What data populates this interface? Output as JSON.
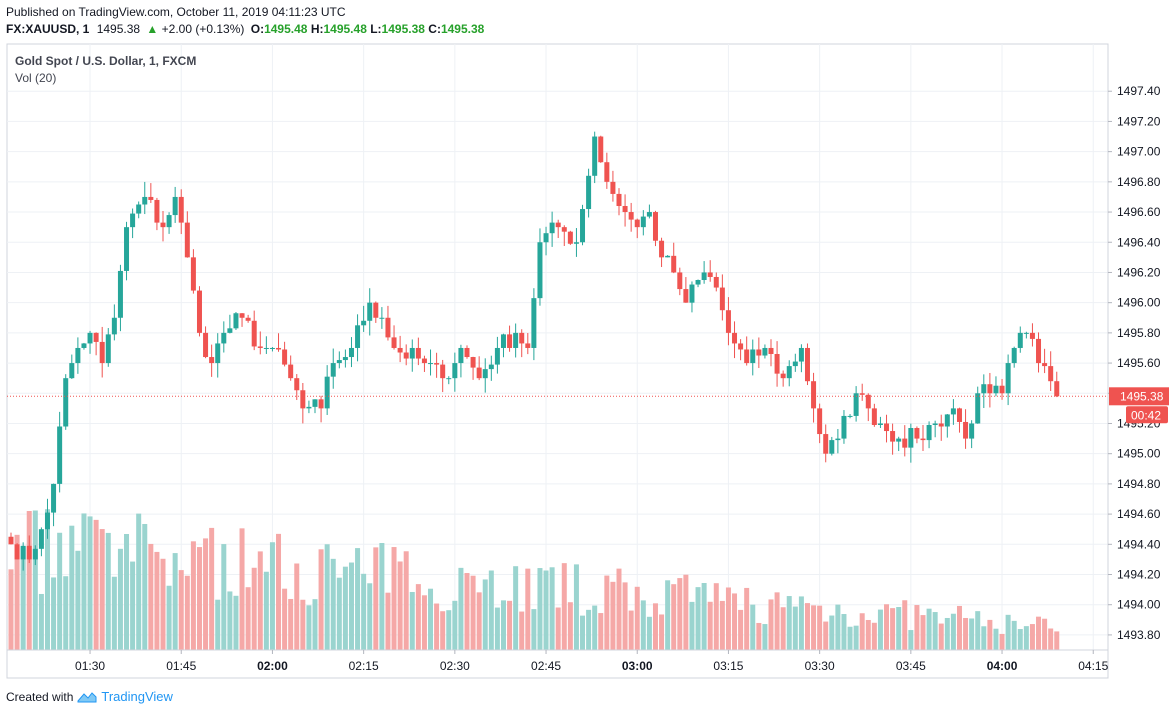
{
  "header": {
    "published": "Published on TradingView.com, October 11, 2019 04:11:23 UTC",
    "symbol": "FX:XAUUSD, 1",
    "last": "1495.38",
    "change_arrow": "▲",
    "change": "+2.00 (+0.13%)",
    "o_label": "O:",
    "o_value": "1495.48",
    "h_label": "H:",
    "h_value": "1495.48",
    "l_label": "L:",
    "l_value": "1495.38",
    "c_label": "C:",
    "c_value": "1495.38"
  },
  "footer": {
    "created_with": "Created with",
    "brand": "TradingView"
  },
  "colors": {
    "up": "#26a69a",
    "down": "#ef5350",
    "vol_up": "#9ad4cf",
    "vol_down": "#f5a8a7",
    "grid": "#eef1f5",
    "price_line": "#ef5350"
  },
  "chart_data": {
    "type": "candlestick",
    "title": "Gold Spot / U.S. Dollar, 1, FXCM",
    "volume_label": "Vol (20)",
    "ylim": [
      1493.72,
      1497.62
    ],
    "y_ticks": [
      "1497.40",
      "1497.20",
      "1497.00",
      "1496.80",
      "1496.60",
      "1496.40",
      "1496.20",
      "1496.00",
      "1495.80",
      "1495.60",
      "1495.40",
      "1495.20",
      "1495.00",
      "1494.80",
      "1494.60",
      "1494.40",
      "1494.20",
      "1494.00",
      "1493.80"
    ],
    "x_ticks": [
      {
        "label": "01:30",
        "t": "01:30",
        "bold": false
      },
      {
        "label": "01:45",
        "t": "01:45",
        "bold": false
      },
      {
        "label": "02:00",
        "t": "02:00",
        "bold": true
      },
      {
        "label": "02:15",
        "t": "02:15",
        "bold": false
      },
      {
        "label": "02:30",
        "t": "02:30",
        "bold": false
      },
      {
        "label": "02:45",
        "t": "02:45",
        "bold": false
      },
      {
        "label": "03:00",
        "t": "03:00",
        "bold": true
      },
      {
        "label": "03:15",
        "t": "03:15",
        "bold": false
      },
      {
        "label": "03:30",
        "t": "03:30",
        "bold": false
      },
      {
        "label": "03:45",
        "t": "03:45",
        "bold": false
      },
      {
        "label": "04:00",
        "t": "04:00",
        "bold": true
      },
      {
        "label": "04:15",
        "t": "04:15",
        "bold": false
      }
    ],
    "start_time": "01:17",
    "last_price": "1495.38",
    "countdown": "00:42",
    "waypoints": [
      [
        "01:17",
        1494.4
      ],
      [
        "01:20",
        1494.3
      ],
      [
        "01:22",
        1494.5
      ],
      [
        "01:24",
        1494.8
      ],
      [
        "01:26",
        1495.5
      ],
      [
        "01:28",
        1495.7
      ],
      [
        "01:30",
        1495.8
      ],
      [
        "01:32",
        1495.6
      ],
      [
        "01:34",
        1495.9
      ],
      [
        "01:36",
        1496.5
      ],
      [
        "01:39",
        1496.7
      ],
      [
        "01:42",
        1496.5
      ],
      [
        "01:44",
        1496.7
      ],
      [
        "01:46",
        1496.3
      ],
      [
        "01:48",
        1495.8
      ],
      [
        "01:50",
        1495.6
      ],
      [
        "01:52",
        1495.8
      ],
      [
        "01:55",
        1495.9
      ],
      [
        "01:58",
        1495.7
      ],
      [
        "02:00",
        1495.7
      ],
      [
        "02:03",
        1495.5
      ],
      [
        "02:05",
        1495.3
      ],
      [
        "02:08",
        1495.3
      ],
      [
        "02:10",
        1495.6
      ],
      [
        "02:13",
        1495.7
      ],
      [
        "02:16",
        1496.0
      ],
      [
        "02:18",
        1495.9
      ],
      [
        "02:20",
        1495.7
      ],
      [
        "02:25",
        1495.6
      ],
      [
        "02:28",
        1495.5
      ],
      [
        "02:31",
        1495.7
      ],
      [
        "02:34",
        1495.5
      ],
      [
        "02:37",
        1495.7
      ],
      [
        "02:40",
        1495.8
      ],
      [
        "02:42",
        1495.7
      ],
      [
        "02:44",
        1496.4
      ],
      [
        "02:47",
        1496.5
      ],
      [
        "02:50",
        1496.4
      ],
      [
        "02:53",
        1497.1
      ],
      [
        "02:55",
        1496.8
      ],
      [
        "02:58",
        1496.6
      ],
      [
        "03:00",
        1496.5
      ],
      [
        "03:02",
        1496.6
      ],
      [
        "03:04",
        1496.3
      ],
      [
        "03:06",
        1496.2
      ],
      [
        "03:08",
        1496.0
      ],
      [
        "03:11",
        1496.2
      ],
      [
        "03:13",
        1496.1
      ],
      [
        "03:15",
        1495.8
      ],
      [
        "03:18",
        1495.6
      ],
      [
        "03:21",
        1495.7
      ],
      [
        "03:24",
        1495.5
      ],
      [
        "03:27",
        1495.7
      ],
      [
        "03:29",
        1495.3
      ],
      [
        "03:31",
        1495.0
      ],
      [
        "03:33",
        1495.1
      ],
      [
        "03:36",
        1495.4
      ],
      [
        "03:38",
        1495.3
      ],
      [
        "03:40",
        1495.2
      ],
      [
        "03:43",
        1495.1
      ],
      [
        "03:46",
        1495.1
      ],
      [
        "03:49",
        1495.2
      ],
      [
        "03:52",
        1495.3
      ],
      [
        "03:54",
        1495.1
      ],
      [
        "03:56",
        1495.4
      ],
      [
        "03:58",
        1495.4
      ],
      [
        "04:00",
        1495.4
      ],
      [
        "04:02",
        1495.7
      ],
      [
        "04:04",
        1495.8
      ],
      [
        "04:06",
        1495.6
      ],
      [
        "04:08",
        1495.48
      ],
      [
        "04:09",
        1495.38
      ]
    ],
    "volume_range": [
      0,
      130
    ]
  }
}
